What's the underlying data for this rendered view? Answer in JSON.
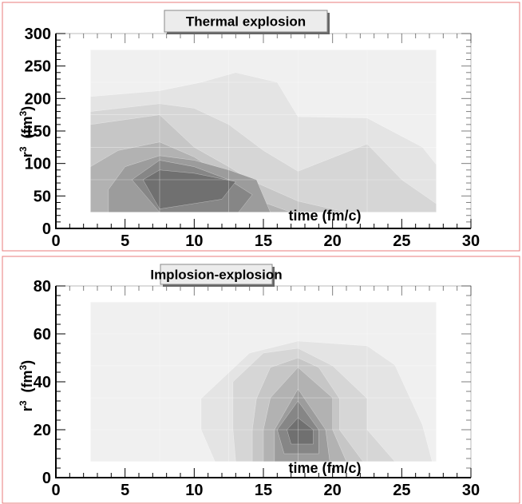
{
  "chart_data": [
    {
      "type": "heatmap",
      "title": "Thermal explosion",
      "xlabel": "time  (fm/c)",
      "ylabel_base": "r",
      "ylabel_exp": "3",
      "ylabel_unit_base": "(fm",
      "ylabel_unit_exp": "3",
      "ylabel_unit_close": ")",
      "xlim": [
        0,
        30
      ],
      "ylim": [
        0,
        300
      ],
      "xticks": [
        0,
        5,
        10,
        15,
        20,
        25,
        30
      ],
      "yticks": [
        0,
        50,
        100,
        150,
        200,
        250,
        300
      ],
      "x_major_step": 5,
      "y_major_step": 50,
      "xminor": 1,
      "yminor": 10,
      "bins_x": [
        2.5,
        7.5,
        12.5,
        17.5,
        22.5,
        27.5
      ],
      "bins_y": [
        25,
        75,
        125,
        175,
        225,
        275
      ],
      "levels": [
        {
          "shade": "#f0f0f0",
          "polygon": [
            [
              2.5,
              25
            ],
            [
              27.5,
              25
            ],
            [
              27.5,
              275
            ],
            [
              2.5,
              275
            ]
          ]
        },
        {
          "shade": "#e4e4e4",
          "polygon": [
            [
              2.5,
              25
            ],
            [
              27.5,
              25
            ],
            [
              27.5,
              98
            ],
            [
              26.5,
              125
            ],
            [
              22.5,
              170
            ],
            [
              17.5,
              172
            ],
            [
              16,
              225
            ],
            [
              13,
              240
            ],
            [
              10.5,
              225
            ],
            [
              7.5,
              212
            ],
            [
              2.5,
              203
            ]
          ]
        },
        {
          "shade": "#d6d6d6",
          "polygon": [
            [
              2.5,
              25
            ],
            [
              27.5,
              25
            ],
            [
              27.5,
              38
            ],
            [
              25,
              75
            ],
            [
              22.5,
              130
            ],
            [
              17.5,
              88
            ],
            [
              15,
              120
            ],
            [
              12.5,
              160
            ],
            [
              10,
              185
            ],
            [
              7.5,
              192
            ],
            [
              2.5,
              180
            ]
          ]
        },
        {
          "shade": "#c6c6c6",
          "polygon": [
            [
              2.5,
              25
            ],
            [
              21,
              25
            ],
            [
              17.5,
              42
            ],
            [
              14,
              75
            ],
            [
              12.5,
              95
            ],
            [
              10,
              125
            ],
            [
              7.5,
              175
            ],
            [
              2.5,
              160
            ]
          ]
        },
        {
          "shade": "#b2b2b2",
          "polygon": [
            [
              2.5,
              25
            ],
            [
              17,
              25
            ],
            [
              14,
              48
            ],
            [
              12.5,
              75
            ],
            [
              10,
              110
            ],
            [
              7.5,
              133
            ],
            [
              4.5,
              120
            ],
            [
              2.5,
              95
            ]
          ]
        },
        {
          "shade": "#9c9c9c",
          "polygon": [
            [
              3.8,
              25
            ],
            [
              15.5,
              25
            ],
            [
              14.5,
              75
            ],
            [
              12.5,
              90
            ],
            [
              10,
              105
            ],
            [
              7.5,
              112
            ],
            [
              5,
              95
            ],
            [
              3.8,
              60
            ]
          ]
        },
        {
          "shade": "#868686",
          "polygon": [
            [
              7.5,
              25
            ],
            [
              13.2,
              25
            ],
            [
              14.2,
              52
            ],
            [
              12.5,
              75
            ],
            [
              10,
              95
            ],
            [
              7.5,
              105
            ],
            [
              5.5,
              75
            ]
          ]
        },
        {
          "shade": "#707070",
          "polygon": [
            [
              7.5,
              30
            ],
            [
              12,
              45
            ],
            [
              13,
              72
            ],
            [
              10,
              85
            ],
            [
              7.5,
              90
            ],
            [
              6.3,
              75
            ]
          ]
        }
      ]
    },
    {
      "type": "heatmap",
      "title": "Implosion-explosion",
      "xlabel": "time  (fm/c)",
      "ylabel_base": "r",
      "ylabel_exp": "3",
      "ylabel_unit_base": "(fm",
      "ylabel_unit_exp": "3",
      "ylabel_unit_close": ")",
      "xlim": [
        0,
        30
      ],
      "ylim": [
        0,
        80
      ],
      "xticks": [
        0,
        5,
        10,
        15,
        20,
        25,
        30
      ],
      "yticks": [
        0,
        20,
        40,
        60,
        80
      ],
      "x_major_step": 5,
      "y_major_step": 20,
      "xminor": 1,
      "yminor": 4,
      "bins_x": [
        2.5,
        7.5,
        12.5,
        17.5,
        22.5,
        27.5
      ],
      "bins_y": [
        6.7,
        20,
        33.3,
        46.7,
        60,
        73.3
      ],
      "levels": [
        {
          "shade": "#f0f0f0",
          "polygon": [
            [
              2.5,
              6.7
            ],
            [
              27.5,
              6.7
            ],
            [
              27.5,
              73.3
            ],
            [
              2.5,
              73.3
            ]
          ]
        },
        {
          "shade": "#e4e4e4",
          "polygon": [
            [
              11.5,
              6.7
            ],
            [
              27.2,
              6.7
            ],
            [
              26.5,
              22
            ],
            [
              24.5,
              47
            ],
            [
              22.5,
              55
            ],
            [
              17.5,
              57
            ],
            [
              14,
              52
            ],
            [
              10.5,
              33
            ],
            [
              10.5,
              20
            ]
          ]
        },
        {
          "shade": "#d6d6d6",
          "polygon": [
            [
              13,
              6.7
            ],
            [
              24.5,
              6.7
            ],
            [
              22.5,
              20
            ],
            [
              22.5,
              33
            ],
            [
              20,
              46.7
            ],
            [
              17.5,
              54
            ],
            [
              15,
              52
            ],
            [
              12.8,
              40
            ],
            [
              12.8,
              20
            ]
          ]
        },
        {
          "shade": "#c6c6c6",
          "polygon": [
            [
              14.2,
              6.7
            ],
            [
              22.2,
              6.7
            ],
            [
              20.5,
              20
            ],
            [
              20.5,
              33
            ],
            [
              19,
              46
            ],
            [
              17.5,
              50
            ],
            [
              15.5,
              46
            ],
            [
              14.5,
              33
            ],
            [
              14.2,
              20
            ]
          ]
        },
        {
          "shade": "#b2b2b2",
          "polygon": [
            [
              15,
              6.7
            ],
            [
              21,
              6.7
            ],
            [
              20,
              20
            ],
            [
              20,
              33.3
            ],
            [
              17.5,
              46
            ],
            [
              15.5,
              33.3
            ],
            [
              15,
              20
            ]
          ]
        },
        {
          "shade": "#9c9c9c",
          "polygon": [
            [
              15.8,
              6.7
            ],
            [
              19.8,
              6.7
            ],
            [
              19.5,
              20
            ],
            [
              17.5,
              37
            ],
            [
              15.8,
              20
            ]
          ]
        },
        {
          "shade": "#868686",
          "polygon": [
            [
              16.5,
              10
            ],
            [
              19,
              10
            ],
            [
              19,
              20
            ],
            [
              17.5,
              32
            ],
            [
              16,
              20
            ]
          ]
        },
        {
          "shade": "#707070",
          "polygon": [
            [
              17,
              14
            ],
            [
              18.6,
              14
            ],
            [
              18.6,
              20
            ],
            [
              17.5,
              25
            ],
            [
              16.7,
              20
            ]
          ]
        }
      ]
    }
  ]
}
